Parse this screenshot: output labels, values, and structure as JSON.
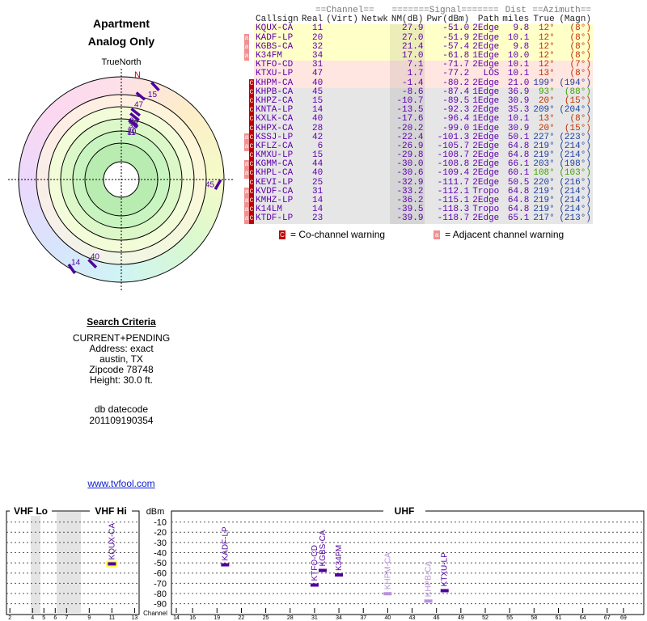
{
  "header": {
    "title": "Apartment",
    "subtitle": "Analog Only"
  },
  "polar": {
    "label": "TrueNorth",
    "north": "N",
    "rlim": [
      80,
      -14
    ],
    "color": "#5000a0",
    "points": [
      {
        "label": "47",
        "az": 13,
        "value": 1.7
      },
      {
        "label": "34",
        "az": 12,
        "value": 17.0
      },
      {
        "label": "15",
        "az": 20,
        "value": -10.7
      },
      {
        "label": "32",
        "az": 12,
        "value": 21.4
      },
      {
        "label": "20",
        "az": 12,
        "value": 27.0
      },
      {
        "label": "11",
        "az": 12,
        "value": 27.9
      },
      {
        "label": "45",
        "az": 93,
        "value": -8.6
      },
      {
        "label": "14",
        "az": 209,
        "value": -13.5
      },
      {
        "label": "40",
        "az": 199,
        "value": -1.4
      }
    ]
  },
  "table": {
    "groups": {
      "channel": "==Channel==",
      "signal": "=======Signal=======",
      "dist": "Dist",
      "azimuth": "==Azimuth=="
    },
    "columns": {
      "callsign": "Callsign",
      "real": "Real",
      "virt": "(Virt)",
      "netwk": "Netwk",
      "nm": "NM(dB)",
      "pwr": "Pwr(dBm)",
      "path": "Path",
      "miles": "miles",
      "az": "True",
      "magn": "(Magn)"
    },
    "rows": [
      {
        "warn": [],
        "callsign": "KQUX-CA",
        "real": "11",
        "nm": "27.9",
        "pwr": "-51.0",
        "path": "2Edge",
        "miles": "9.8",
        "az": "12°",
        "magn": "(8°)",
        "bg": "#ffffc8",
        "az_color": "#c03000"
      },
      {
        "warn": [
          "a"
        ],
        "callsign": "KADF-LP",
        "real": "20",
        "nm": "27.0",
        "pwr": "-51.9",
        "path": "2Edge",
        "miles": "10.1",
        "az": "12°",
        "magn": "(8°)",
        "bg": "#ffffc8",
        "az_color": "#c03000"
      },
      {
        "warn": [
          "a"
        ],
        "callsign": "KGBS-CA",
        "real": "32",
        "nm": "21.4",
        "pwr": "-57.4",
        "path": "2Edge",
        "miles": "9.8",
        "az": "12°",
        "magn": "(8°)",
        "bg": "#ffffc8",
        "az_color": "#c03000"
      },
      {
        "warn": [
          "a"
        ],
        "callsign": "K34FM",
        "real": "34",
        "nm": "17.0",
        "pwr": "-61.8",
        "path": "1Edge",
        "miles": "10.0",
        "az": "12°",
        "magn": "(8°)",
        "bg": "#ffffc8",
        "az_color": "#c03000"
      },
      {
        "warn": [],
        "callsign": "KTFO-CD",
        "real": "31",
        "nm": "7.1",
        "pwr": "-71.7",
        "path": "2Edge",
        "miles": "10.1",
        "az": "12°",
        "magn": "(7°)",
        "bg": "#ffe6e0",
        "az_color": "#c03000"
      },
      {
        "warn": [],
        "callsign": "KTXU-LP",
        "real": "47",
        "nm": "1.7",
        "pwr": "-77.2",
        "path": "LOS",
        "miles": "10.1",
        "az": "13°",
        "magn": "(8°)",
        "bg": "#ffe6e0",
        "az_color": "#c03000"
      },
      {
        "warn": [
          "C"
        ],
        "callsign": "KHPM-CA",
        "real": "40",
        "nm": "-1.4",
        "pwr": "-80.2",
        "path": "2Edge",
        "miles": "21.0",
        "az": "199°",
        "magn": "(194°)",
        "bg": "#ffe6e0",
        "az_color": "#2040a0"
      },
      {
        "warn": [
          "C"
        ],
        "callsign": "KHPB-CA",
        "real": "45",
        "nm": "-8.6",
        "pwr": "-87.4",
        "path": "1Edge",
        "miles": "36.9",
        "az": "93°",
        "magn": "(88°)",
        "bg": "#e6e6e6",
        "az_color": "#40a000"
      },
      {
        "warn": [
          "C"
        ],
        "callsign": "KHPZ-CA",
        "real": "15",
        "nm": "-10.7",
        "pwr": "-89.5",
        "path": "1Edge",
        "miles": "30.9",
        "az": "20°",
        "magn": "(15°)",
        "bg": "#e6e6e6",
        "az_color": "#c03000"
      },
      {
        "warn": [
          "C"
        ],
        "callsign": "KNTA-LP",
        "real": "14",
        "nm": "-13.5",
        "pwr": "-92.3",
        "path": "2Edge",
        "miles": "35.3",
        "az": "209°",
        "magn": "(204°)",
        "bg": "#e6e6e6",
        "az_color": "#2040a0"
      },
      {
        "warn": [
          "C"
        ],
        "callsign": "KXLK-CA",
        "real": "40",
        "nm": "-17.6",
        "pwr": "-96.4",
        "path": "1Edge",
        "miles": "10.1",
        "az": "13°",
        "magn": "(8°)",
        "bg": "#e6e6e6",
        "az_color": "#c03000"
      },
      {
        "warn": [
          "C"
        ],
        "callsign": "KHPX-CA",
        "real": "28",
        "nm": "-20.2",
        "pwr": "-99.0",
        "path": "1Edge",
        "miles": "30.9",
        "az": "20°",
        "magn": "(15°)",
        "bg": "#e6e6e6",
        "az_color": "#c03000"
      },
      {
        "warn": [
          "a",
          "C"
        ],
        "callsign": "KSSJ-LP",
        "real": "42",
        "nm": "-22.4",
        "pwr": "-101.3",
        "path": "2Edge",
        "miles": "50.1",
        "az": "227°",
        "magn": "(223°)",
        "bg": "#e6e6e6",
        "az_color": "#2040a0"
      },
      {
        "warn": [
          "a",
          "C"
        ],
        "callsign": "KFLZ-CA",
        "real": "6",
        "nm": "-26.9",
        "pwr": "-105.7",
        "path": "2Edge",
        "miles": "64.8",
        "az": "219°",
        "magn": "(214°)",
        "bg": "#e6e6e6",
        "az_color": "#2040a0"
      },
      {
        "warn": [
          "C"
        ],
        "callsign": "KMXU-LP",
        "real": "15",
        "nm": "-29.8",
        "pwr": "-108.7",
        "path": "2Edge",
        "miles": "64.8",
        "az": "219°",
        "magn": "(214°)",
        "bg": "#e6e6e6",
        "az_color": "#2040a0"
      },
      {
        "warn": [
          "a",
          "C"
        ],
        "callsign": "KGMM-CA",
        "real": "44",
        "nm": "-30.0",
        "pwr": "-108.8",
        "path": "2Edge",
        "miles": "66.1",
        "az": "203°",
        "magn": "(198°)",
        "bg": "#e6e6e6",
        "az_color": "#2040a0"
      },
      {
        "warn": [
          "a",
          "C"
        ],
        "callsign": "KHPL-CA",
        "real": "40",
        "nm": "-30.6",
        "pwr": "-109.4",
        "path": "2Edge",
        "miles": "60.1",
        "az": "108°",
        "magn": "(103°)",
        "bg": "#e6e6e6",
        "az_color": "#40a000"
      },
      {
        "warn": [
          "C"
        ],
        "callsign": "KEVI-LP",
        "real": "25",
        "nm": "-32.9",
        "pwr": "-111.7",
        "path": "2Edge",
        "miles": "50.5",
        "az": "220°",
        "magn": "(216°)",
        "bg": "#e6e6e6",
        "az_color": "#2040a0"
      },
      {
        "warn": [
          "a",
          "C"
        ],
        "callsign": "KVDF-CA",
        "real": "31",
        "nm": "-33.2",
        "pwr": "-112.1",
        "path": "Tropo",
        "miles": "64.8",
        "az": "219°",
        "magn": "(214°)",
        "bg": "#e6e6e6",
        "az_color": "#2040a0"
      },
      {
        "warn": [
          "a",
          "C"
        ],
        "callsign": "KMHZ-LP",
        "real": "14",
        "nm": "-36.2",
        "pwr": "-115.1",
        "path": "2Edge",
        "miles": "64.8",
        "az": "219°",
        "magn": "(214°)",
        "bg": "#e6e6e6",
        "az_color": "#2040a0"
      },
      {
        "warn": [
          "a",
          "C"
        ],
        "callsign": "K14LM",
        "real": "14",
        "nm": "-39.5",
        "pwr": "-118.3",
        "path": "Tropo",
        "miles": "64.8",
        "az": "219°",
        "magn": "(214°)",
        "bg": "#e6e6e6",
        "az_color": "#2040a0"
      },
      {
        "warn": [
          "a",
          "C"
        ],
        "callsign": "KTDF-LP",
        "real": "23",
        "nm": "-39.9",
        "pwr": "-118.7",
        "path": "2Edge",
        "miles": "65.1",
        "az": "217°",
        "magn": "(213°)",
        "bg": "#e6e6e6",
        "az_color": "#2040a0"
      }
    ],
    "legend": [
      {
        "mark": "C",
        "label": "= Co-channel warning",
        "color": "#c00000"
      },
      {
        "mark": "a",
        "label": "= Adjacent channel warning",
        "color": "#f09090"
      }
    ]
  },
  "search": {
    "title": "Search Criteria",
    "lines": [
      "CURRENT+PENDING",
      "Address: exact",
      "austin, TX",
      "Zipcode 78748",
      "Height: 30.0 ft."
    ],
    "datecode_label": "db datecode",
    "datecode": "201109190354",
    "link": "www.tvfool.com"
  },
  "chart_data": {
    "type": "spectrum",
    "ylabel": "dBm",
    "xlabel": "Channel",
    "ylim": [
      -99,
      -4
    ],
    "yticks": [
      -10,
      -20,
      -30,
      -40,
      -50,
      -60,
      -70,
      -80,
      -90
    ],
    "panels": [
      {
        "names": [
          "VHF Lo",
          "VHF Hi"
        ],
        "xlim": [
          1.7,
          13.4
        ],
        "xticks": [
          2,
          4,
          5,
          6,
          7,
          9,
          11,
          13
        ]
      },
      {
        "names": [
          "UHF"
        ],
        "xlim": [
          13.4,
          71.5
        ],
        "xticks": [
          14,
          16,
          19,
          22,
          25,
          28,
          31,
          34,
          37,
          40,
          43,
          46,
          49,
          52,
          55,
          58,
          61,
          64,
          67,
          69
        ]
      }
    ],
    "points": [
      {
        "name": "KQUX-CA",
        "x": 11,
        "value": -51.0,
        "color": "#5000a0",
        "highlight": "#ffff40"
      },
      {
        "name": "KADF-LP",
        "x": 20,
        "value": -51.9,
        "color": "#5000a0"
      },
      {
        "name": "KTFO-CD",
        "x": 31,
        "value": -71.7,
        "color": "#5000a0"
      },
      {
        "name": "KGBS-CA",
        "x": 32,
        "value": -57.4,
        "color": "#5000a0"
      },
      {
        "name": "K34FM",
        "x": 34,
        "value": -61.8,
        "color": "#5000a0"
      },
      {
        "name": "KHPM-CA",
        "x": 40,
        "value": -80.2,
        "color": "#b890d8"
      },
      {
        "name": "KHPB-CA",
        "x": 45,
        "value": -87.4,
        "color": "#b890d8"
      },
      {
        "name": "KTXU-LP",
        "x": 47,
        "value": -77.2,
        "color": "#5000a0"
      }
    ]
  }
}
